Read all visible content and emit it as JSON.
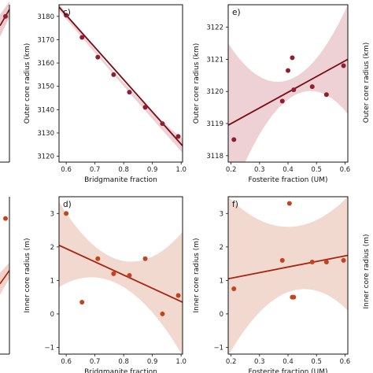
{
  "colors": {
    "outer_line": "#7a0a14",
    "outer_point": "#8f1f33",
    "outer_band": "#ebc9cc",
    "inner_line": "#a8240e",
    "inner_point": "#c4431f",
    "inner_band": "#f0d2c8"
  },
  "chart_data": [
    {
      "id": "panel-a-partial",
      "type": "scatter",
      "panel_label": "",
      "xlabel": "",
      "ylabel": "",
      "x": [
        0.95
      ],
      "y": [
        3180
      ],
      "ylim": [
        3117.5,
        3185
      ],
      "fit": {
        "y_start": 3176,
        "y_end": 3183
      },
      "grid": false
    },
    {
      "id": "panel-c",
      "type": "scatter",
      "panel_label": "c)",
      "xlabel": "Bridgmanite fraction",
      "ylabel": "Outer core radius (km)",
      "xlim": [
        0.575,
        1.005
      ],
      "ylim": [
        3117.5,
        3185
      ],
      "x_ticks": [
        0.6,
        0.7,
        0.8,
        0.9,
        1.0
      ],
      "x_tick_labels": [
        "0.6",
        "0.7",
        "0.8",
        "0.9",
        "1.0"
      ],
      "y_ticks": [
        3120,
        3130,
        3140,
        3150,
        3160,
        3170,
        3180
      ],
      "y_tick_labels": [
        "3120",
        "3130",
        "3140",
        "3150",
        "3160",
        "3170",
        "3180"
      ],
      "x": [
        0.6,
        0.655,
        0.71,
        0.765,
        0.82,
        0.875,
        0.935,
        0.99
      ],
      "y": [
        3180.5,
        3171,
        3162.5,
        3155,
        3147.5,
        3141,
        3134,
        3128.5
      ],
      "fit": {
        "x0": 0.575,
        "y0": 3184,
        "x1": 1.005,
        "y1": 3124.5
      },
      "band": {
        "upper": [
          3185.5,
          3153,
          3127.5
        ],
        "lower": [
          3182.5,
          3151.5,
          3121.5
        ]
      },
      "grid": false
    },
    {
      "id": "panel-e",
      "type": "scatter",
      "panel_label": "e)",
      "xlabel": "Fosterite fraction (UM)",
      "ylabel": "Outer core radius (km)",
      "xlim": [
        0.19,
        0.61
      ],
      "ylim": [
        3117.8,
        3122.7
      ],
      "x_ticks": [
        0.2,
        0.3,
        0.4,
        0.5,
        0.6
      ],
      "x_tick_labels": [
        "0.2",
        "0.3",
        "0.4",
        "0.5",
        "0.6"
      ],
      "y_ticks": [
        3118,
        3119,
        3120,
        3121,
        3122
      ],
      "y_tick_labels": [
        "3118",
        "3119",
        "3120",
        "3121",
        "3122"
      ],
      "x": [
        0.21,
        0.38,
        0.4,
        0.415,
        0.42,
        0.485,
        0.535,
        0.595
      ],
      "y": [
        3118.5,
        3119.7,
        3120.65,
        3121.05,
        3120.05,
        3120.15,
        3119.9,
        3120.8
      ],
      "fit": {
        "x0": 0.19,
        "y0": 3118.95,
        "x1": 0.61,
        "y1": 3121.0
      },
      "band": {
        "upper": [
          3121.5,
          3120.35,
          3122.7
        ],
        "lower": [
          3116.5,
          3119.75,
          3119.3
        ]
      },
      "grid": false
    },
    {
      "id": "panel-b-partial",
      "type": "scatter",
      "panel_label": "",
      "xlabel": "",
      "ylabel": "",
      "x": [
        0.95
      ],
      "y": [
        2.85
      ],
      "ylim": [
        -1.2,
        3.5
      ],
      "fit": {
        "y_start": 0.9,
        "y_end": 1.3
      },
      "grid": false
    },
    {
      "id": "panel-d",
      "type": "scatter",
      "panel_label": "d)",
      "xlabel": "Bridgmanite fraction",
      "ylabel": "Inner core radius (m)",
      "xlim": [
        0.575,
        1.005
      ],
      "ylim": [
        -1.2,
        3.5
      ],
      "x_ticks": [
        0.6,
        0.7,
        0.8,
        0.9,
        1.0
      ],
      "x_tick_labels": [
        "0.6",
        "0.7",
        "0.8",
        "0.9",
        "1.0"
      ],
      "y_ticks": [
        -1,
        0,
        1,
        2,
        3
      ],
      "y_tick_labels": [
        "−1",
        "0",
        "1",
        "2",
        "3"
      ],
      "x": [
        0.6,
        0.655,
        0.71,
        0.765,
        0.82,
        0.875,
        0.935,
        0.99
      ],
      "y": [
        3.0,
        0.35,
        1.65,
        1.2,
        1.15,
        1.65,
        0.0,
        0.55
      ],
      "fit": {
        "x0": 0.575,
        "y0": 2.05,
        "x1": 1.005,
        "y1": 0.35
      },
      "band": {
        "upper": [
          3.35,
          1.6,
          2.45
        ],
        "lower": [
          0.8,
          0.85,
          -1.25
        ]
      },
      "grid": false
    },
    {
      "id": "panel-f",
      "type": "scatter",
      "panel_label": "f)",
      "xlabel": "Fosterite fraction (UM)",
      "ylabel": "Inner core radius (m)",
      "xlim": [
        0.19,
        0.61
      ],
      "ylim": [
        -1.2,
        3.5
      ],
      "x_ticks": [
        0.2,
        0.3,
        0.4,
        0.5,
        0.6
      ],
      "x_tick_labels": [
        "0.2",
        "0.3",
        "0.4",
        "0.5",
        "0.6"
      ],
      "y_ticks": [
        -1,
        0,
        1,
        2,
        3
      ],
      "y_tick_labels": [
        "−1",
        "0",
        "1",
        "2",
        "3"
      ],
      "x": [
        0.21,
        0.38,
        0.405,
        0.415,
        0.42,
        0.485,
        0.535,
        0.595
      ],
      "y": [
        0.75,
        1.6,
        3.3,
        0.5,
        0.5,
        1.55,
        1.55,
        1.6
      ],
      "fit": {
        "x0": 0.19,
        "y0": 1.05,
        "x1": 0.61,
        "y1": 1.75
      },
      "band": {
        "upper": [
          3.5,
          2.6,
          3.5
        ],
        "lower": [
          -1.25,
          0.65,
          0.1
        ]
      },
      "grid": false
    },
    {
      "id": "panel-right-partial-top",
      "type": "scatter",
      "panel_label": "",
      "xlabel": "",
      "ylabel": "Outer core radius (km)",
      "x": [],
      "y": [],
      "grid": false
    },
    {
      "id": "panel-right-partial-bottom",
      "type": "scatter",
      "panel_label": "",
      "xlabel": "",
      "ylabel": "Inner core radius (m)",
      "x": [],
      "y": [],
      "grid": false
    }
  ]
}
